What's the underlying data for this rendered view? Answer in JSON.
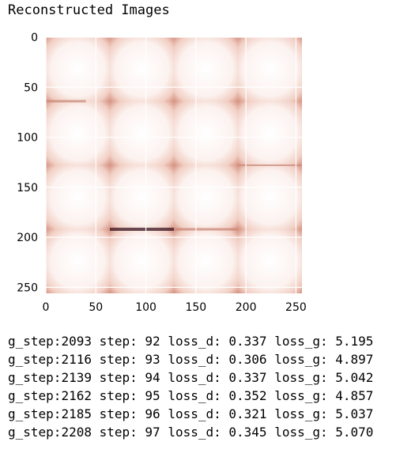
{
  "title": "Reconstructed Images",
  "chart_data": {
    "type": "heatmap",
    "title": "",
    "xlabel": "",
    "ylabel": "",
    "xlim": [
      0,
      256
    ],
    "ylim": [
      256,
      0
    ],
    "xticks": [
      0,
      50,
      100,
      150,
      200,
      250
    ],
    "yticks": [
      0,
      50,
      100,
      150,
      200,
      250
    ],
    "grid": true,
    "image_grid": {
      "rows": 4,
      "cols": 4,
      "tile_size": 64
    },
    "colors": {
      "background": "#fdf4f2",
      "edge": "#c98777",
      "dark": "#3a1620"
    }
  },
  "log": [
    {
      "g_step": "2093",
      "step": "92",
      "loss_d": "0.337",
      "loss_g": "5.195"
    },
    {
      "g_step": "2116",
      "step": "93",
      "loss_d": "0.306",
      "loss_g": "4.897"
    },
    {
      "g_step": "2139",
      "step": "94",
      "loss_d": "0.337",
      "loss_g": "5.042"
    },
    {
      "g_step": "2162",
      "step": "95",
      "loss_d": "0.352",
      "loss_g": "4.857"
    },
    {
      "g_step": "2185",
      "step": "96",
      "loss_d": "0.321",
      "loss_g": "5.037"
    },
    {
      "g_step": "2208",
      "step": "97",
      "loss_d": "0.345",
      "loss_g": "5.070"
    }
  ],
  "log_labels": {
    "g_step": "g_step:",
    "step": "step:",
    "loss_d": "loss_d:",
    "loss_g": "loss_g:"
  }
}
